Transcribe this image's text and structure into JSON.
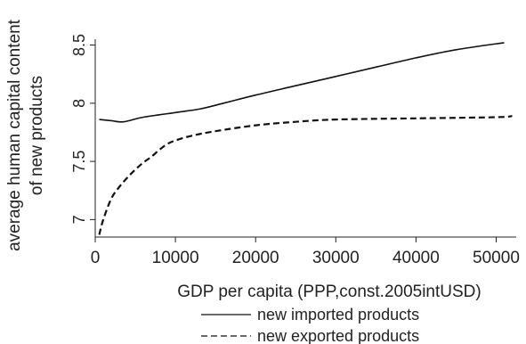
{
  "chart_data": {
    "type": "line",
    "title": "",
    "xlabel": "GDP per capita (PPP,const.2005intUSD)",
    "ylabel_lines": [
      "average human capital content",
      "of new products"
    ],
    "xlim": [
      0,
      52500
    ],
    "ylim": [
      6.85,
      8.55
    ],
    "x_ticks": [
      0,
      10000,
      20000,
      30000,
      40000,
      50000
    ],
    "x_tick_labels": [
      "0",
      "10000",
      "20000",
      "30000",
      "40000",
      "50000"
    ],
    "y_ticks": [
      7,
      7.5,
      8,
      8.5
    ],
    "y_tick_labels": [
      "7",
      "7.5",
      "8",
      "8.5"
    ],
    "grid": false,
    "legend_position": "bottom",
    "series": [
      {
        "name": "new imported products",
        "style": "solid",
        "color": "#111111",
        "x": [
          500,
          2000,
          3500,
          6000,
          10000,
          13000,
          16000,
          20000,
          25000,
          30000,
          35000,
          40000,
          45000,
          51000
        ],
        "y": [
          7.86,
          7.85,
          7.84,
          7.88,
          7.92,
          7.95,
          8.0,
          8.07,
          8.15,
          8.23,
          8.31,
          8.39,
          8.46,
          8.52
        ]
      },
      {
        "name": "new exported products",
        "style": "dashed",
        "color": "#111111",
        "x": [
          500,
          1000,
          2000,
          3000,
          4000,
          5000,
          6000,
          7000,
          8000,
          9000,
          10000,
          12000,
          15000,
          20000,
          25000,
          30000,
          40000,
          50000,
          52000
        ],
        "y": [
          6.87,
          7.0,
          7.18,
          7.28,
          7.36,
          7.43,
          7.49,
          7.54,
          7.6,
          7.65,
          7.68,
          7.72,
          7.76,
          7.81,
          7.84,
          7.86,
          7.87,
          7.88,
          7.89
        ]
      }
    ]
  }
}
